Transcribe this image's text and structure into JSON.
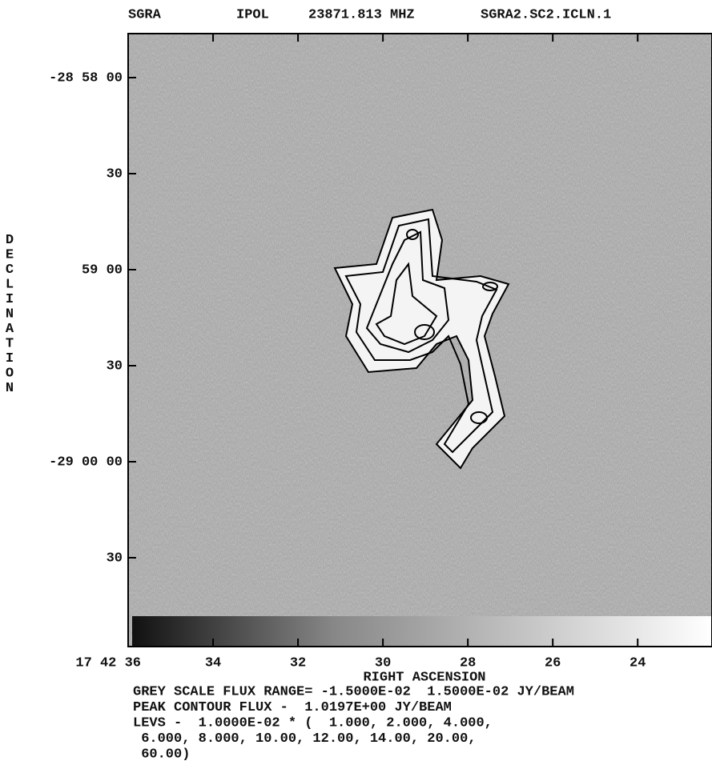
{
  "chart_data": {
    "type": "contour",
    "header": [
      "SGRA",
      "IPOL",
      "23871.813 MHZ",
      "SGRA2.SC2.ICLN.1"
    ],
    "xlabel": "RIGHT ASCENSION",
    "ylabel": "DECLINATION",
    "xlim": [
      36,
      22.25
    ],
    "xticks": [
      {
        "value": 36,
        "label": "17 42 36"
      },
      34,
      32,
      30,
      28,
      26,
      24
    ],
    "ylim": [
      -104457.75,
      -104266.25
    ],
    "yticks": [
      {
        "value": -104280,
        "label": "-28 58 00"
      },
      {
        "value": -104310,
        "label": "30"
      },
      {
        "value": -104340,
        "label": "59 00"
      },
      {
        "value": -104370,
        "label": "30"
      },
      {
        "value": -104400,
        "label": "-29 00 00"
      },
      {
        "value": -104430,
        "label": "30"
      }
    ],
    "notes": [
      "GREY SCALE FLUX RANGE= -1.5000E-02  1.5000E-02 JY/BEAM",
      "PEAK CONTOUR FLUX -  1.0197E+00 JY/BEAM",
      "LEVS -  1.0000E-02 * (  1.000, 2.000, 4.000,",
      " 6.000, 8.000, 10.00, 12.00, 14.00, 20.00,",
      " 60.00)"
    ]
  }
}
